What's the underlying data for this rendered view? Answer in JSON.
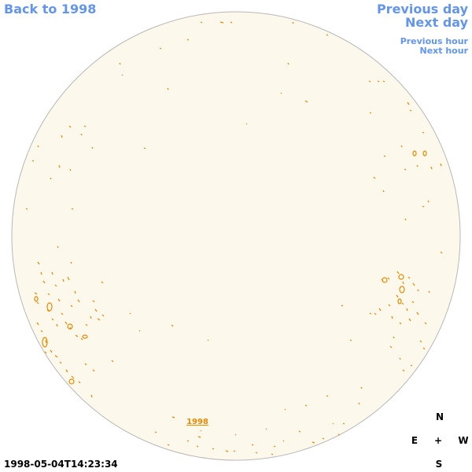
{
  "nav": {
    "back": "Back to 1998",
    "previous_day": "Previous day",
    "next_day": "Next day",
    "previous_hour": "Previous hour",
    "next_hour": "Next hour"
  },
  "timestamp": "1998-05-04T14:23:34",
  "disk_label": "1998",
  "compass": {
    "north": "N",
    "east": "E",
    "center": "+",
    "west": "W",
    "south": "S"
  }
}
